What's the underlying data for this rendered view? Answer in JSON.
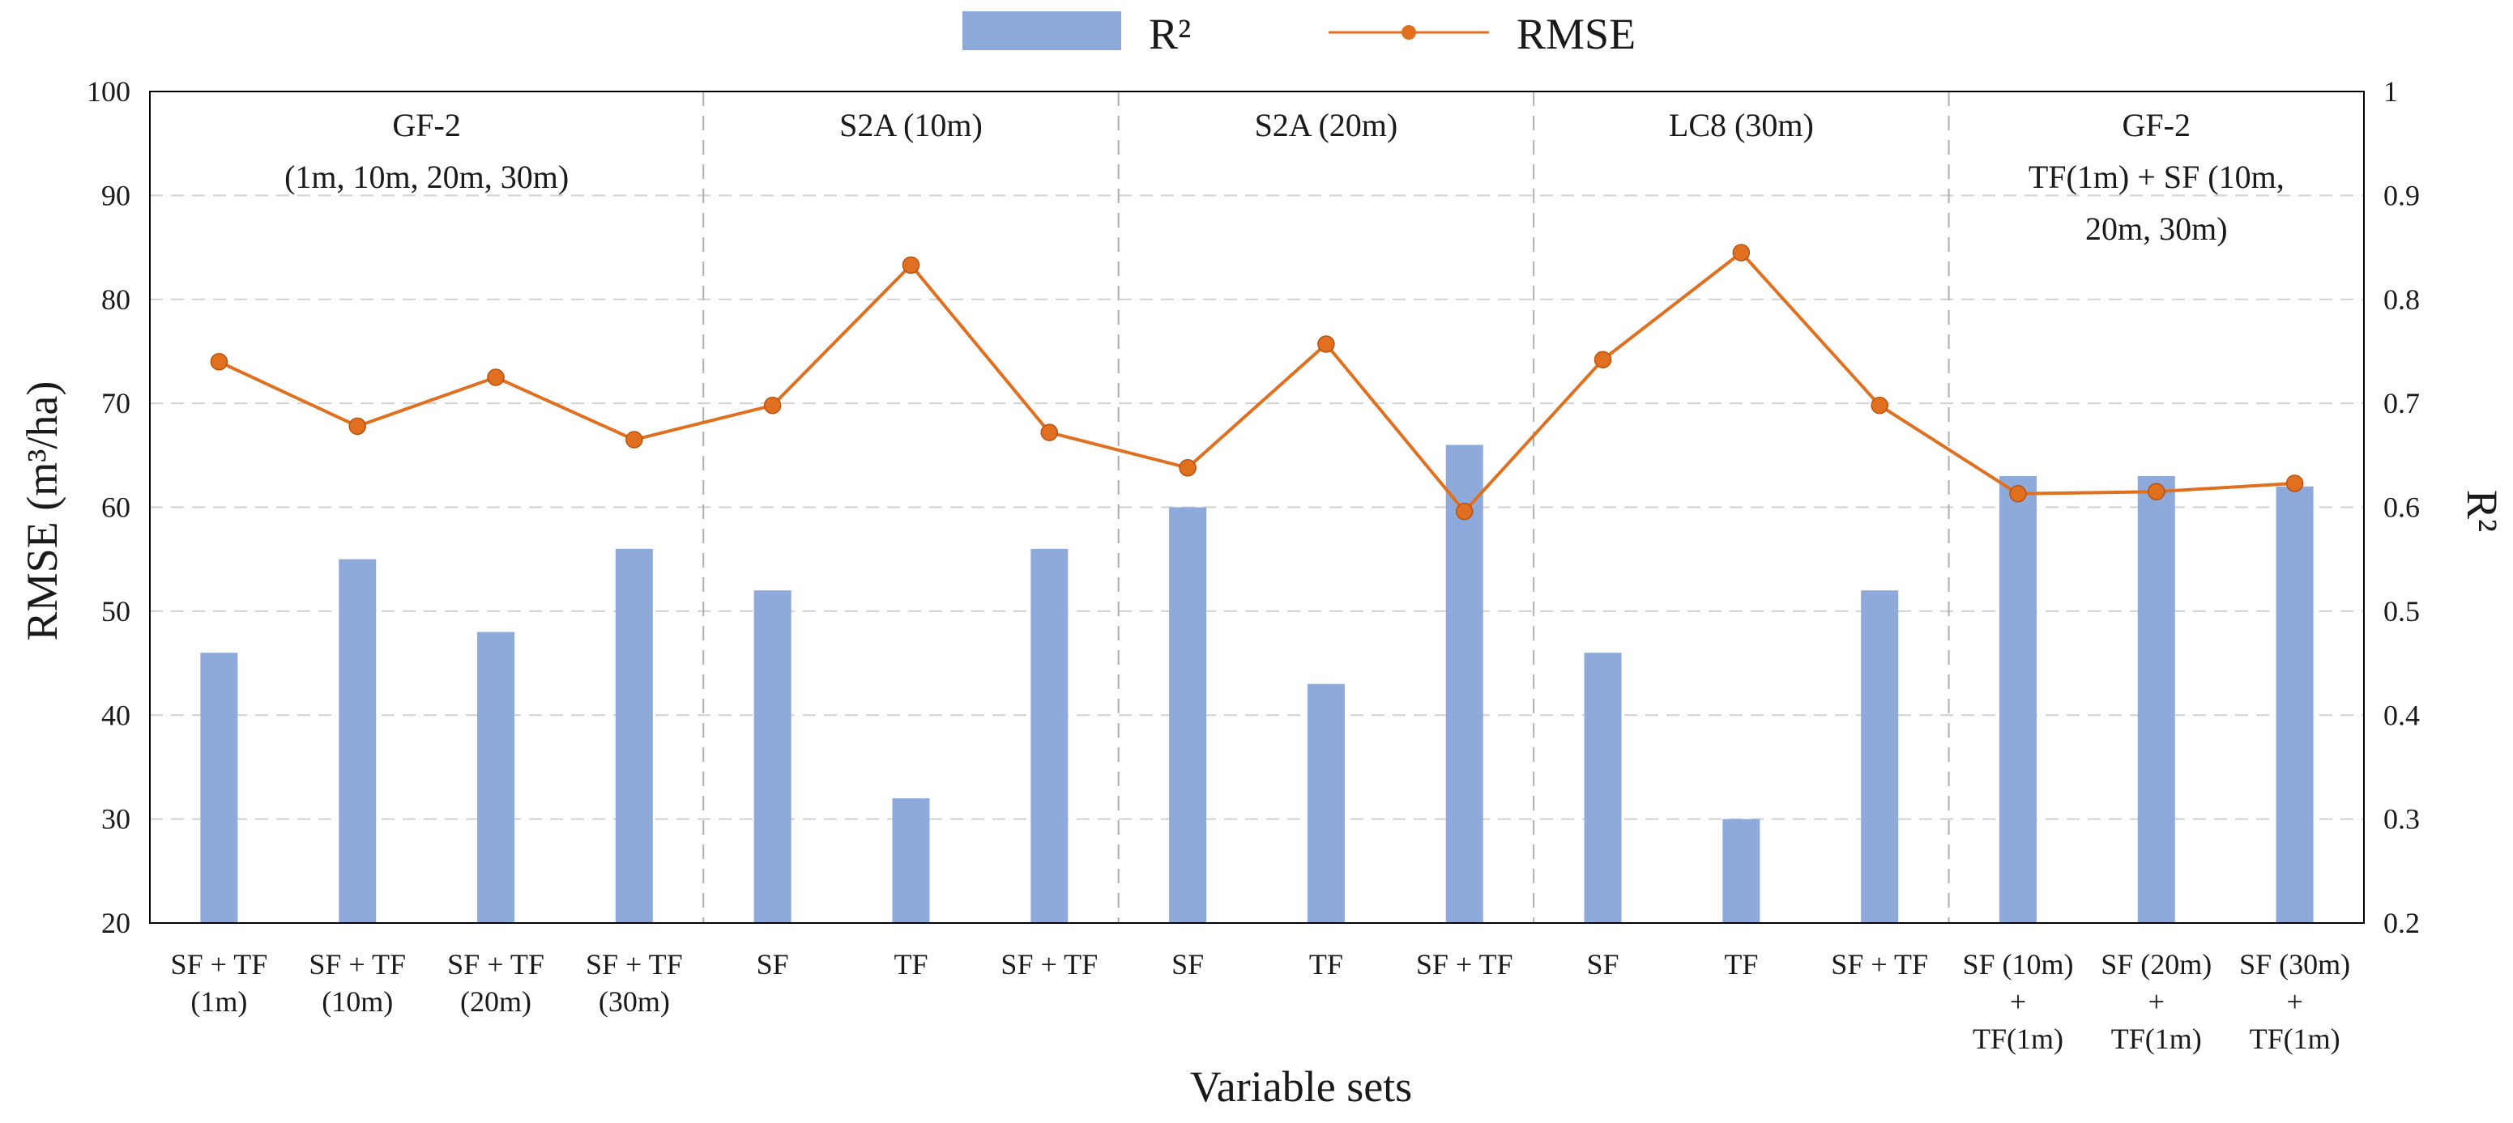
{
  "chart_data": {
    "type": "bar+line",
    "xlabel": "Variable sets",
    "ylabel_left": "RMSE (m³/ha)",
    "ylabel_right": "R²",
    "ylim_left": [
      20,
      100
    ],
    "ylim_right": [
      0.2,
      1.0
    ],
    "yticks_left": [
      "20",
      "30",
      "40",
      "50",
      "60",
      "70",
      "80",
      "90",
      "100"
    ],
    "yticks_right": [
      "0.2",
      "0.3",
      "0.4",
      "0.5",
      "0.6",
      "0.7",
      "0.8",
      "0.9",
      "1"
    ],
    "legend": [
      {
        "name": "R²",
        "kind": "bar",
        "color": "#8eaadb"
      },
      {
        "name": "RMSE",
        "kind": "line",
        "color": "#e07020"
      }
    ],
    "groups": [
      {
        "lines": [
          "GF-2",
          "(1m, 10m, 20m, 30m)"
        ],
        "count": 4
      },
      {
        "lines": [
          "S2A (10m)"
        ],
        "count": 3
      },
      {
        "lines": [
          "S2A (20m)"
        ],
        "count": 3
      },
      {
        "lines": [
          "LC8 (30m)"
        ],
        "count": 3
      },
      {
        "lines": [
          "GF-2",
          "TF(1m) + SF (10m,",
          "20m, 30m)"
        ],
        "count": 3
      }
    ],
    "categories": [
      [
        "SF + TF",
        "(1m)"
      ],
      [
        "SF + TF",
        "(10m)"
      ],
      [
        "SF + TF",
        "(20m)"
      ],
      [
        "SF + TF",
        "(30m)"
      ],
      [
        "SF"
      ],
      [
        "TF"
      ],
      [
        "SF + TF"
      ],
      [
        "SF"
      ],
      [
        "TF"
      ],
      [
        "SF + TF"
      ],
      [
        "SF"
      ],
      [
        "TF"
      ],
      [
        "SF + TF"
      ],
      [
        "SF (10m)",
        "+",
        "TF(1m)"
      ],
      [
        "SF (20m)",
        "+",
        "TF(1m)"
      ],
      [
        "SF (30m)",
        "+",
        "TF(1m)"
      ]
    ],
    "series": [
      {
        "name": "R²",
        "axis": "right",
        "type": "bar",
        "values": [
          0.46,
          0.55,
          0.48,
          0.56,
          0.52,
          0.32,
          0.56,
          0.6,
          0.43,
          0.66,
          0.46,
          0.3,
          0.52,
          0.63,
          0.63,
          0.62
        ]
      },
      {
        "name": "RMSE",
        "axis": "left",
        "type": "line",
        "values": [
          74.0,
          67.8,
          72.5,
          66.5,
          69.8,
          83.3,
          67.2,
          63.8,
          75.7,
          59.6,
          74.2,
          84.5,
          69.8,
          61.3,
          61.5,
          62.3
        ]
      }
    ],
    "colors": {
      "bar": "#8eaadb",
      "line": "#e07020",
      "grid": "#d0d0d0",
      "separator": "#b0b0b0"
    }
  }
}
